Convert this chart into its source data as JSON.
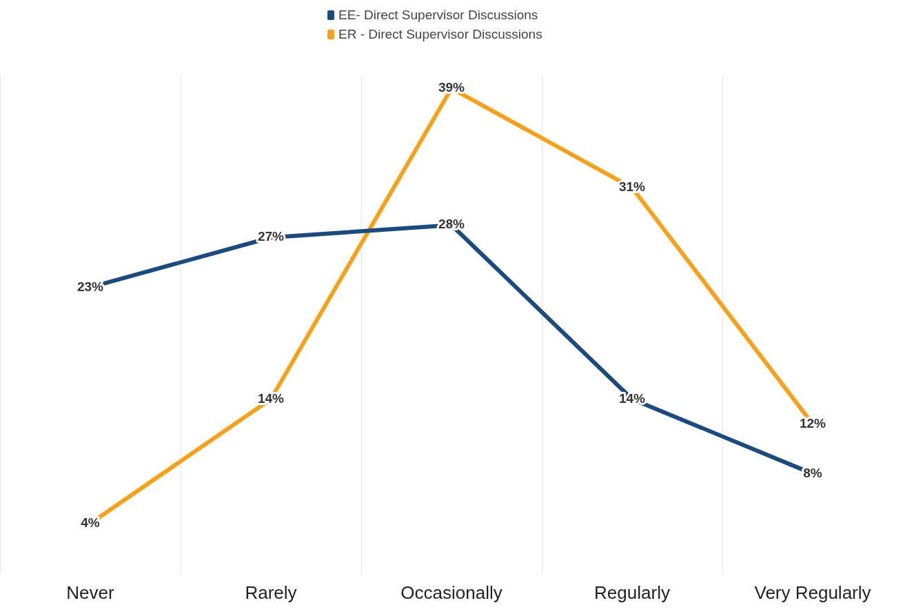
{
  "chart_data": {
    "type": "line",
    "categories": [
      "Never",
      "Rarely",
      "Occasionally",
      "Regularly",
      "Very Regularly"
    ],
    "series": [
      {
        "name": "EE- Direct Supervisor Discussions",
        "color": "#1b4a7f",
        "values": [
          23,
          27,
          28,
          14,
          8
        ],
        "value_labels": [
          "23%",
          "27%",
          "28%",
          "14%",
          "8%"
        ]
      },
      {
        "name": "ER - Direct Supervisor Discussions",
        "color": "#f5a11c",
        "values": [
          4,
          14,
          39,
          31,
          12
        ],
        "value_labels": [
          "4%",
          "14%",
          "39%",
          "31%",
          "12%"
        ]
      }
    ],
    "grid": "x",
    "legend": "top",
    "marker": "none",
    "line_style": "solid",
    "tick_labels": "x"
  }
}
